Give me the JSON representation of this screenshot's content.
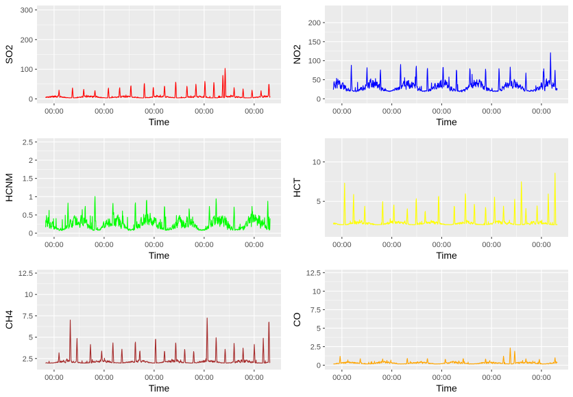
{
  "figure": {
    "panel_background": "#ebebeb",
    "grid_color": "#ffffff",
    "x_tick_labels": [
      "00:00",
      "00:00",
      "00:00",
      "00:00",
      "00:00"
    ]
  },
  "chart_data": [
    {
      "type": "line",
      "series": [
        {
          "color": "#ff0000"
        }
      ],
      "xlabel": "Time",
      "ylabel": "SO2",
      "ylim": [
        -15,
        315
      ],
      "yticks": [
        0,
        100,
        200,
        300
      ],
      "x_tick_labels": [
        "00:00",
        "00:00",
        "00:00",
        "00:00",
        "00:00"
      ],
      "baseline": 3,
      "noise": 10,
      "spikes": [
        [
          0.06,
          30
        ],
        [
          0.12,
          38
        ],
        [
          0.17,
          34
        ],
        [
          0.22,
          30
        ],
        [
          0.28,
          40
        ],
        [
          0.33,
          42
        ],
        [
          0.38,
          50
        ],
        [
          0.44,
          60
        ],
        [
          0.48,
          45
        ],
        [
          0.53,
          50
        ],
        [
          0.58,
          65
        ],
        [
          0.63,
          48
        ],
        [
          0.67,
          55
        ],
        [
          0.71,
          65
        ],
        [
          0.75,
          60
        ],
        [
          0.79,
          85
        ],
        [
          0.8,
          110
        ],
        [
          0.84,
          40
        ],
        [
          0.88,
          35
        ],
        [
          0.92,
          30
        ],
        [
          0.96,
          28
        ],
        [
          0.995,
          58
        ]
      ]
    },
    {
      "type": "line",
      "series": [
        {
          "color": "#0000ff"
        }
      ],
      "xlabel": "Time",
      "ylabel": "NO2",
      "ylim": [
        -12,
        245
      ],
      "yticks": [
        0,
        50,
        100,
        150,
        200
      ],
      "x_tick_labels": [
        "00:00",
        "00:00",
        "00:00",
        "00:00",
        "00:00"
      ],
      "baseline": 18,
      "noise": 40,
      "spikes": [
        [
          0.08,
          90
        ],
        [
          0.15,
          85
        ],
        [
          0.21,
          80
        ],
        [
          0.3,
          98
        ],
        [
          0.37,
          95
        ],
        [
          0.42,
          90
        ],
        [
          0.49,
          95
        ],
        [
          0.55,
          85
        ],
        [
          0.61,
          88
        ],
        [
          0.68,
          85
        ],
        [
          0.74,
          85
        ],
        [
          0.79,
          88
        ],
        [
          0.86,
          70
        ],
        [
          0.94,
          80
        ],
        [
          0.97,
          122
        ],
        [
          0.99,
          75
        ]
      ]
    },
    {
      "type": "line",
      "series": [
        {
          "color": "#00ff00"
        }
      ],
      "xlabel": "Time",
      "ylabel": "HCNM",
      "ylim": [
        -0.1,
        2.6
      ],
      "yticks": [
        0.0,
        0.5,
        1.0,
        1.5,
        2.0,
        2.5
      ],
      "x_tick_labels": [
        "00:00",
        "00:00",
        "00:00",
        "00:00",
        "00:00"
      ],
      "baseline": 0.06,
      "noise": 0.6,
      "spikes": [
        [
          0.1,
          0.85
        ],
        [
          0.22,
          1.08
        ],
        [
          0.3,
          0.9
        ],
        [
          0.4,
          0.95
        ],
        [
          0.45,
          1.05
        ],
        [
          0.53,
          0.85
        ],
        [
          0.64,
          0.75
        ],
        [
          0.73,
          0.8
        ],
        [
          0.76,
          1.02
        ],
        [
          0.84,
          0.75
        ],
        [
          0.92,
          0.75
        ],
        [
          0.99,
          0.88
        ]
      ]
    },
    {
      "type": "line",
      "series": [
        {
          "color": "#ffff00"
        }
      ],
      "xlabel": "Time",
      "ylabel": "HCT",
      "ylim": [
        0.5,
        13.0
      ],
      "yticks": [
        5,
        10
      ],
      "x_tick_labels": [
        "00:00",
        "00:00",
        "00:00",
        "00:00",
        "00:00"
      ],
      "baseline": 2.0,
      "noise": 0.7,
      "spikes": [
        [
          0.05,
          7.4
        ],
        [
          0.09,
          6.0
        ],
        [
          0.14,
          4.5
        ],
        [
          0.22,
          5.2
        ],
        [
          0.27,
          4.8
        ],
        [
          0.33,
          4.3
        ],
        [
          0.37,
          5.8
        ],
        [
          0.41,
          4.0
        ],
        [
          0.47,
          6.3
        ],
        [
          0.54,
          4.8
        ],
        [
          0.59,
          6.6
        ],
        [
          0.63,
          5.0
        ],
        [
          0.68,
          4.5
        ],
        [
          0.72,
          5.9
        ],
        [
          0.76,
          4.6
        ],
        [
          0.81,
          5.5
        ],
        [
          0.84,
          7.8
        ],
        [
          0.86,
          4.2
        ],
        [
          0.91,
          4.5
        ],
        [
          0.96,
          6.0
        ],
        [
          0.99,
          8.6
        ]
      ]
    },
    {
      "type": "line",
      "series": [
        {
          "color": "#a52a2a"
        }
      ],
      "xlabel": "Time",
      "ylabel": "CH4",
      "ylim": [
        1.2,
        12.9
      ],
      "yticks": [
        2.5,
        5.0,
        7.5,
        10.0,
        12.5
      ],
      "x_tick_labels": [
        "00:00",
        "00:00",
        "00:00",
        "00:00",
        "00:00"
      ],
      "baseline": 1.95,
      "noise": 0.5,
      "spikes": [
        [
          0.06,
          3.2
        ],
        [
          0.11,
          7.2
        ],
        [
          0.14,
          5.0
        ],
        [
          0.2,
          4.3
        ],
        [
          0.25,
          3.5
        ],
        [
          0.3,
          4.6
        ],
        [
          0.34,
          3.8
        ],
        [
          0.4,
          4.8
        ],
        [
          0.42,
          3.6
        ],
        [
          0.49,
          5.3
        ],
        [
          0.53,
          3.6
        ],
        [
          0.58,
          4.7
        ],
        [
          0.62,
          3.8
        ],
        [
          0.66,
          3.5
        ],
        [
          0.72,
          7.8
        ],
        [
          0.76,
          5.2
        ],
        [
          0.8,
          3.7
        ],
        [
          0.84,
          4.4
        ],
        [
          0.88,
          3.8
        ],
        [
          0.93,
          4.2
        ],
        [
          0.97,
          4.9
        ],
        [
          0.995,
          7.7
        ]
      ]
    },
    {
      "type": "line",
      "series": [
        {
          "color": "#ffa500"
        }
      ],
      "xlabel": "Time",
      "ylabel": "CO",
      "ylim": [
        -0.6,
        12.9
      ],
      "yticks": [
        0.0,
        2.5,
        5.0,
        7.5,
        10.0,
        12.5
      ],
      "x_tick_labels": [
        "00:00",
        "00:00",
        "00:00",
        "00:00",
        "00:00"
      ],
      "baseline": 0.15,
      "noise": 0.45,
      "spikes": [
        [
          0.03,
          1.2
        ],
        [
          0.12,
          0.9
        ],
        [
          0.22,
          0.9
        ],
        [
          0.33,
          1.0
        ],
        [
          0.42,
          1.0
        ],
        [
          0.5,
          0.9
        ],
        [
          0.58,
          1.0
        ],
        [
          0.68,
          0.9
        ],
        [
          0.76,
          1.3
        ],
        [
          0.79,
          2.5
        ],
        [
          0.81,
          2.0
        ],
        [
          0.86,
          0.9
        ],
        [
          0.92,
          0.8
        ],
        [
          0.99,
          1.0
        ]
      ]
    }
  ]
}
